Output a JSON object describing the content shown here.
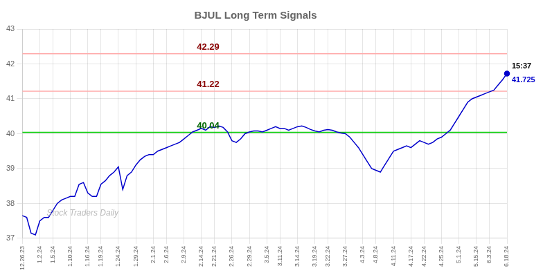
{
  "chart_data": {
    "type": "line",
    "title": "BJUL Long Term Signals",
    "categories": [
      "12.26.23",
      null,
      null,
      null,
      "1.2.24",
      null,
      null,
      "1.5.24",
      null,
      null,
      null,
      "1.10.24",
      null,
      null,
      null,
      "1.16.24",
      null,
      null,
      "1.19.24",
      null,
      null,
      null,
      "1.24.24",
      null,
      null,
      null,
      "1.29.24",
      null,
      null,
      null,
      "2.1.24",
      null,
      null,
      "2.6.24",
      null,
      null,
      null,
      "2.9.24",
      null,
      null,
      null,
      "2.14.24",
      null,
      null,
      "2.21.24",
      null,
      null,
      null,
      "2.26.24",
      null,
      null,
      null,
      "2.29.24",
      null,
      null,
      null,
      "3.5.24",
      null,
      null,
      "3.11.24",
      null,
      null,
      null,
      "3.14.24",
      null,
      null,
      null,
      "3.19.24",
      null,
      null,
      "3.22.24",
      null,
      null,
      null,
      "3.27.24",
      null,
      null,
      null,
      "4.3.24",
      null,
      null,
      "4.8.24",
      null,
      null,
      null,
      "4.11.24",
      null,
      null,
      null,
      "4.17.24",
      null,
      null,
      "4.22.24",
      null,
      null,
      null,
      "4.25.24",
      null,
      null,
      null,
      "5.1.24",
      null,
      null,
      null,
      "5.15.24",
      null,
      null,
      "6.3.24",
      null,
      null,
      null,
      "6.18.24"
    ],
    "values": [
      37.65,
      37.6,
      37.15,
      37.1,
      37.5,
      37.6,
      37.6,
      37.8,
      38.0,
      38.1,
      38.15,
      38.2,
      38.2,
      38.55,
      38.6,
      38.3,
      38.2,
      38.2,
      38.55,
      38.65,
      38.8,
      38.9,
      39.05,
      38.4,
      38.8,
      38.9,
      39.1,
      39.25,
      39.35,
      39.4,
      39.4,
      39.5,
      39.55,
      39.6,
      39.65,
      39.7,
      39.75,
      39.85,
      39.95,
      40.05,
      40.1,
      40.15,
      40.1,
      40.2,
      40.18,
      40.22,
      40.18,
      40.05,
      39.8,
      39.75,
      39.85,
      40.0,
      40.05,
      40.08,
      40.08,
      40.05,
      40.1,
      40.15,
      40.2,
      40.15,
      40.15,
      40.1,
      40.15,
      40.2,
      40.22,
      40.18,
      40.12,
      40.08,
      40.05,
      40.1,
      40.12,
      40.1,
      40.05,
      40.02,
      40.0,
      39.9,
      39.75,
      39.6,
      39.4,
      39.2,
      39.0,
      38.95,
      38.9,
      39.1,
      39.3,
      39.5,
      39.55,
      39.6,
      39.65,
      39.6,
      39.7,
      39.8,
      39.75,
      39.7,
      39.75,
      39.85,
      39.9,
      40.0,
      40.1,
      40.3,
      40.5,
      40.7,
      40.9,
      41.0,
      41.05,
      41.1,
      41.15,
      41.2,
      41.25,
      41.4,
      41.55,
      41.725
    ],
    "color": "#0000cc",
    "hlines": [
      {
        "value": 40.04,
        "line_color": "#00cc00",
        "text": "40.04",
        "color": "#006600"
      },
      {
        "value": 41.22,
        "line_color": "#ffaaaa",
        "text": "41.22",
        "color": "#880000"
      },
      {
        "value": 42.29,
        "line_color": "#ffaaaa",
        "text": "42.29",
        "color": "#880000"
      }
    ],
    "last_labels": [
      {
        "text": "15:37",
        "color": "#000000"
      },
      {
        "text": "41.725",
        "color": "#0000cc"
      }
    ],
    "watermark": {
      "text": "Stock Traders Daily",
      "color": "#bbbbbb"
    },
    "ylim": [
      37.0,
      43.0
    ],
    "yticks": [
      37,
      38,
      39,
      40,
      41,
      42,
      43
    ],
    "grid": true
  }
}
